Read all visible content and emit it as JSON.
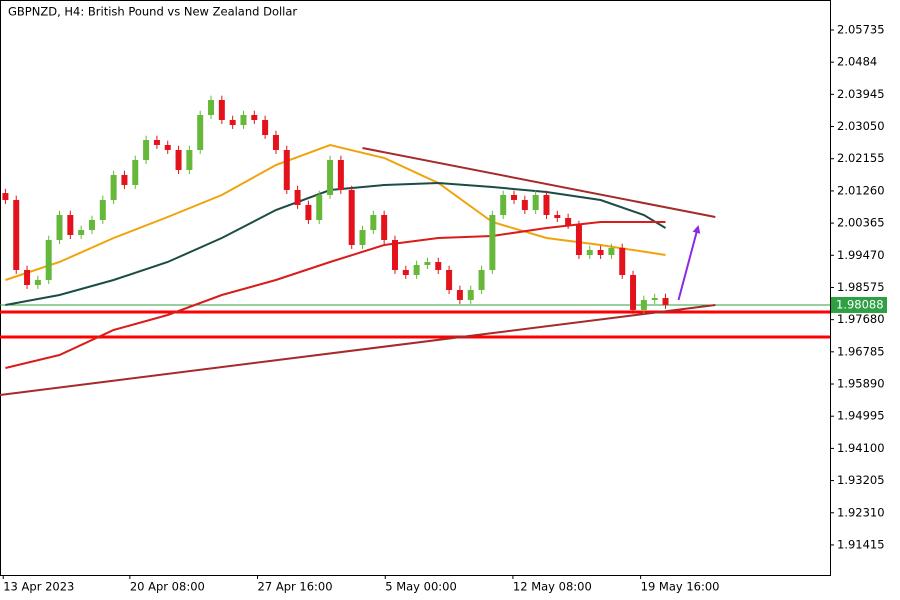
{
  "chart_data": {
    "type": "candlestick",
    "title": "GBPNZD, H4:  British Pound vs New Zealand Dollar",
    "up_color": "#66b83a",
    "down_color": "#e3131b",
    "xlim": [
      -0.5,
      76.2
    ],
    "ylim": [
      1.90579,
      2.06569
    ],
    "xticks": [
      {
        "value": -0.2,
        "label": "13 Apr 2023"
      },
      {
        "value": 11.5,
        "label": "20 Apr 08:00"
      },
      {
        "value": 23.3,
        "label": "27 Apr 16:00"
      },
      {
        "value": 35.1,
        "label": "5 May 00:00"
      },
      {
        "value": 46.9,
        "label": "12 May 08:00"
      },
      {
        "value": 58.7,
        "label": "19 May 16:00"
      }
    ],
    "yticks": [
      2.05735,
      2.0484,
      2.03945,
      {
        "value": 2.0305,
        "label": "2.03050"
      },
      2.02155,
      {
        "value": 2.0126,
        "label": "2.01260"
      },
      2.00365,
      {
        "value": 1.9947,
        "label": "1.99470"
      },
      1.98575,
      {
        "value": 1.9768,
        "label": "1.97680"
      },
      1.96785,
      {
        "value": 1.9589,
        "label": "1.95890"
      },
      1.94995,
      {
        "value": 1.941,
        "label": "1.94100"
      },
      1.93205,
      {
        "value": 1.9231,
        "label": "1.92310"
      },
      1.91415
    ],
    "candles": [
      [
        2.012,
        2.0132,
        2.00898,
        2.01008
      ],
      [
        2.01008,
        2.01128,
        1.98951,
        1.99061
      ],
      [
        1.99061,
        1.99181,
        1.98534,
        1.98644
      ],
      [
        1.98644,
        1.98903,
        1.98534,
        1.98783
      ],
      [
        1.98783,
        2.00015,
        1.98673,
        1.99895
      ],
      [
        1.99895,
        2.0071,
        1.99785,
        2.0059
      ],
      [
        2.0059,
        2.0071,
        1.99924,
        2.00034
      ],
      [
        2.00034,
        2.00293,
        1.99924,
        2.00173
      ],
      [
        2.00173,
        2.00571,
        2.00063,
        2.00451
      ],
      [
        2.00451,
        2.01128,
        2.00341,
        2.01008
      ],
      [
        2.01008,
        2.01823,
        2.00898,
        2.01703
      ],
      [
        2.01703,
        2.01823,
        2.01315,
        2.01425
      ],
      [
        2.01425,
        2.0224,
        2.01315,
        2.0212
      ],
      [
        2.0212,
        2.02796,
        2.0201,
        2.02676
      ],
      [
        2.02676,
        2.02796,
        2.02427,
        2.02537
      ],
      [
        2.02537,
        2.02657,
        2.02288,
        2.02398
      ],
      [
        2.02398,
        2.02518,
        2.01732,
        2.01842
      ],
      [
        2.01842,
        2.02518,
        2.01732,
        2.02398
      ],
      [
        2.02398,
        2.03491,
        2.02288,
        2.03371
      ],
      [
        2.03371,
        2.03908,
        2.03261,
        2.03788
      ],
      [
        2.03788,
        2.03908,
        2.03122,
        2.03232
      ],
      [
        2.03232,
        2.03352,
        2.02983,
        2.03093
      ],
      [
        2.03093,
        2.03491,
        2.02983,
        2.03371
      ],
      [
        2.03371,
        2.03491,
        2.03122,
        2.03232
      ],
      [
        2.03232,
        2.03352,
        2.02705,
        2.02815
      ],
      [
        2.02815,
        2.02935,
        2.02288,
        2.02398
      ],
      [
        2.02398,
        2.02518,
        2.01176,
        2.01286
      ],
      [
        2.01286,
        2.01406,
        2.00759,
        2.00869
      ],
      [
        2.00869,
        2.00989,
        2.00341,
        2.00451
      ],
      [
        2.00451,
        2.01267,
        2.00341,
        2.01147
      ],
      [
        2.01147,
        2.0224,
        2.01037,
        2.0212
      ],
      [
        2.0212,
        2.0224,
        2.01176,
        2.01286
      ],
      [
        2.01286,
        2.01406,
        1.99646,
        1.99756
      ],
      [
        1.99756,
        2.00293,
        1.99646,
        2.00173
      ],
      [
        2.00173,
        2.0071,
        2.00063,
        2.0059
      ],
      [
        2.0059,
        2.0071,
        1.99785,
        1.99895
      ],
      [
        1.99895,
        2.00015,
        1.98951,
        1.99061
      ],
      [
        1.99061,
        1.99181,
        1.98812,
        1.98922
      ],
      [
        1.98922,
        1.9932,
        1.98812,
        1.992
      ],
      [
        1.992,
        1.99403,
        1.9909,
        1.99283
      ],
      [
        1.99283,
        1.99403,
        1.98951,
        1.99061
      ],
      [
        1.99061,
        1.99181,
        1.98395,
        1.98505
      ],
      [
        1.98505,
        1.98625,
        1.98117,
        1.98227
      ],
      [
        1.98227,
        1.98625,
        1.98117,
        1.98505
      ],
      [
        1.98505,
        1.99181,
        1.98395,
        1.99061
      ],
      [
        1.99061,
        2.0071,
        1.98951,
        2.0059
      ],
      [
        2.0059,
        2.01267,
        2.0048,
        2.01147
      ],
      [
        2.01147,
        2.01267,
        2.00898,
        2.01008
      ],
      [
        2.01008,
        2.01128,
        2.00619,
        2.00729
      ],
      [
        2.00729,
        2.01267,
        2.00619,
        2.01147
      ],
      [
        2.01147,
        2.01267,
        2.0048,
        2.0059
      ],
      [
        2.0059,
        2.0071,
        2.00397,
        2.00507
      ],
      [
        2.00507,
        2.00627,
        2.00202,
        2.00312
      ],
      [
        2.00312,
        2.00432,
        1.99368,
        1.99478
      ],
      [
        1.99478,
        1.99737,
        1.99368,
        1.99617
      ],
      [
        1.99617,
        1.99737,
        1.99368,
        1.99478
      ],
      [
        1.99478,
        1.99793,
        1.99368,
        1.99673
      ],
      [
        1.99673,
        1.99793,
        1.98812,
        1.98922
      ],
      [
        1.98922,
        1.99042,
        1.9784,
        1.9795
      ],
      [
        1.9795,
        1.98347,
        1.9784,
        1.98227
      ],
      [
        1.98227,
        1.98402,
        1.98117,
        1.98282
      ],
      [
        1.98282,
        1.98402,
        1.97978,
        1.98088
      ]
    ],
    "series": [
      {
        "color": "#f0a30a",
        "x": [
          0,
          5,
          10,
          15,
          20,
          25,
          30,
          35,
          40,
          45,
          50,
          55,
          61
        ],
        "values": [
          1.98783,
          1.99283,
          1.99951,
          2.00535,
          2.01147,
          2.01981,
          2.02537,
          2.02175,
          2.0148,
          2.00396,
          1.99951,
          1.99756,
          1.99478
        ]
      },
      {
        "color": "#1b4d46",
        "x": [
          0,
          5,
          10,
          15,
          20,
          25,
          30,
          35,
          40,
          45,
          50,
          55,
          59,
          61
        ],
        "values": [
          1.98088,
          1.98366,
          1.98783,
          1.99283,
          1.99951,
          2.00729,
          2.01286,
          2.01425,
          2.0148,
          2.01369,
          2.0123,
          2.01008,
          2.0059,
          2.00229
        ]
      },
      {
        "color": "#d91c1c",
        "x": [
          0,
          5,
          10,
          15,
          20,
          25,
          30,
          35,
          40,
          45,
          50,
          55,
          61
        ],
        "values": [
          1.96335,
          1.96697,
          1.97392,
          1.97809,
          1.98366,
          1.98783,
          1.99283,
          1.99756,
          1.99951,
          2.00006,
          2.00229,
          2.00396,
          2.00396
        ]
      }
    ],
    "trendlines": [
      {
        "color": "#a52a2a",
        "x": [
          33,
          65.6
        ],
        "values": [
          2.02453,
          2.00535
        ]
      },
      {
        "color": "#a52a2a",
        "x": [
          -0.5,
          65.6
        ],
        "values": [
          1.95585,
          1.98088
        ]
      }
    ],
    "arrow": {
      "color": "#8a2be2",
      "x": [
        62.2,
        64.0
      ],
      "values": [
        1.98227,
        2.00257
      ]
    },
    "levels": [
      {
        "value": 1.97893,
        "color": "#ff0000"
      },
      {
        "value": 1.97198,
        "color": "#ff0000"
      }
    ],
    "price_color": "#2ea043"
  }
}
